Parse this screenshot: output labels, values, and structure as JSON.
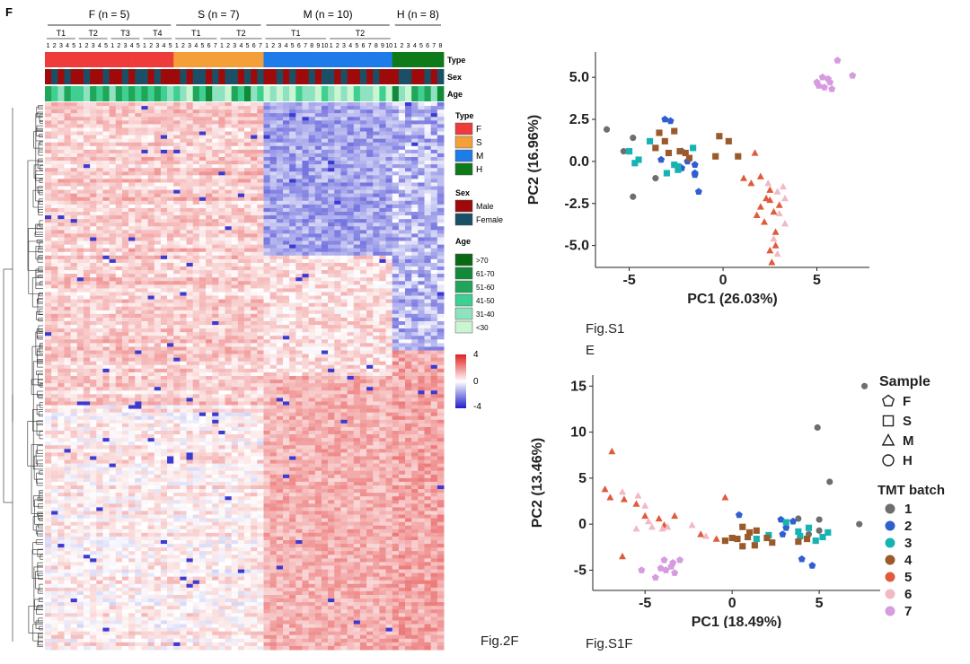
{
  "panel_letter": "F",
  "captions": {
    "fig2f": "Fig.2F",
    "figs1": "Fig.S1",
    "figs1_e": "E",
    "figs1f": "Fig.S1F"
  },
  "colors": {
    "F": "#ee3b3b",
    "S": "#f4a03a",
    "M": "#1e7be8",
    "H": "#0f7a1a",
    "male": "#9e0a0a",
    "female": "#1b4f66",
    "age": [
      "#0a6a14",
      "#118a3a",
      "#1fa65a",
      "#3fcf90",
      "#8fe2bf",
      "#c9f5d3"
    ],
    "heat_low": "#1f1fcc",
    "heat_mid": "#ffffff",
    "heat_high": "#e02020",
    "batch": [
      "#6e6e6e",
      "#2f5fd0",
      "#17b3b3",
      "#9b5a2c",
      "#e05a3c",
      "#f2b8c4",
      "#d79be0"
    ]
  },
  "chart_data": [
    {
      "type": "heatmap",
      "title": "",
      "groups": [
        {
          "label": "F (n = 5)",
          "subgroups": [
            {
              "label": "T1",
              "samples": [
                "1",
                "2",
                "3",
                "4",
                "5"
              ]
            },
            {
              "label": "T2",
              "samples": [
                "1",
                "2",
                "3",
                "4",
                "5"
              ]
            },
            {
              "label": "T3",
              "samples": [
                "1",
                "2",
                "3",
                "4",
                "5"
              ]
            },
            {
              "label": "T4",
              "samples": [
                "1",
                "2",
                "3",
                "4",
                "5"
              ]
            }
          ]
        },
        {
          "label": "S (n = 7)",
          "subgroups": [
            {
              "label": "T1",
              "samples": [
                "1",
                "2",
                "3",
                "4",
                "5",
                "6",
                "7"
              ]
            },
            {
              "label": "T2",
              "samples": [
                "1",
                "2",
                "3",
                "4",
                "5",
                "6",
                "7"
              ]
            }
          ]
        },
        {
          "label": "M (n = 10)",
          "subgroups": [
            {
              "label": "T1",
              "samples": [
                "1",
                "2",
                "3",
                "4",
                "5",
                "6",
                "7",
                "8",
                "9",
                "10"
              ]
            },
            {
              "label": "T2",
              "samples": [
                "1",
                "2",
                "3",
                "4",
                "5",
                "6",
                "7",
                "8",
                "9",
                "10"
              ]
            }
          ]
        },
        {
          "label": "H (n = 8)",
          "subgroups": [
            {
              "label": "",
              "samples": [
                "1",
                "2",
                "3",
                "4",
                "5",
                "6",
                "7",
                "8"
              ]
            }
          ]
        }
      ],
      "annotation_rows": [
        "Type",
        "Sex",
        "Age"
      ],
      "legend": {
        "type_title": "Type",
        "type_items": [
          "F",
          "S",
          "M",
          "H"
        ],
        "sex_title": "Sex",
        "sex_items": [
          "Male",
          "Female"
        ],
        "age_title": "Age",
        "age_items": [
          ">70",
          "61-70",
          "51-60",
          "41-50",
          "31-40",
          "<30"
        ],
        "scale_ticks": [
          "4",
          "0",
          "-4"
        ]
      },
      "value_range": [
        -4,
        4
      ]
    },
    {
      "type": "scatter",
      "xlabel": "PC1 (26.03%)",
      "ylabel": "PC2 (16.96%)",
      "xlim": [
        -6.8,
        7.8
      ],
      "ylim": [
        -6.3,
        6.5
      ],
      "xticks": [
        -5,
        0,
        5
      ],
      "yticks": [
        -5.0,
        -2.5,
        0.0,
        2.5,
        5.0
      ],
      "series": [
        {
          "shape": "circle",
          "batch": 1,
          "points": [
            [
              -6.2,
              1.9
            ],
            [
              -5.3,
              0.6
            ],
            [
              -4.8,
              1.4
            ],
            [
              -4.8,
              -2.1
            ],
            [
              -3.6,
              -1.0
            ]
          ]
        },
        {
          "shape": "pentagon",
          "batch": 2,
          "points": [
            [
              -3.1,
              2.5
            ],
            [
              -2.8,
              2.4
            ],
            [
              -1.9,
              0.0
            ],
            [
              -1.5,
              -0.2
            ],
            [
              -1.5,
              -0.7
            ],
            [
              -1.5,
              -0.8
            ],
            [
              -2.2,
              -0.4
            ],
            [
              -1.3,
              -1.8
            ],
            [
              -3.3,
              0.1
            ],
            [
              -2.2,
              0.6
            ]
          ]
        },
        {
          "shape": "square",
          "batch": 3,
          "points": [
            [
              -5.0,
              0.6
            ],
            [
              -4.5,
              0.1
            ],
            [
              -3.9,
              1.2
            ],
            [
              -4.7,
              -0.1
            ],
            [
              -3.0,
              -0.7
            ],
            [
              -2.6,
              -0.2
            ],
            [
              -2.4,
              -0.3
            ],
            [
              -1.6,
              0.8
            ],
            [
              -2.4,
              -0.5
            ]
          ]
        },
        {
          "shape": "square",
          "batch": 4,
          "points": [
            [
              -3.4,
              1.7
            ],
            [
              -2.9,
              0.5
            ],
            [
              -2.6,
              1.8
            ],
            [
              -2.3,
              0.6
            ],
            [
              -2.0,
              0.5
            ],
            [
              -1.8,
              0.2
            ],
            [
              -0.2,
              1.5
            ],
            [
              0.3,
              1.2
            ],
            [
              -0.4,
              0.3
            ],
            [
              0.8,
              0.3
            ],
            [
              -3.6,
              0.8
            ],
            [
              -3.1,
              1.2
            ]
          ]
        },
        {
          "shape": "triangle",
          "batch": 5,
          "points": [
            [
              1.7,
              0.5
            ],
            [
              2.0,
              -0.9
            ],
            [
              1.5,
              -1.3
            ],
            [
              1.1,
              -1.0
            ],
            [
              2.5,
              -1.7
            ],
            [
              2.3,
              -2.2
            ],
            [
              2.0,
              -2.7
            ],
            [
              1.8,
              -3.2
            ],
            [
              2.7,
              -3.0
            ],
            [
              2.8,
              -4.2
            ],
            [
              2.8,
              -5.0
            ],
            [
              2.5,
              -5.3
            ],
            [
              2.6,
              -6.0
            ],
            [
              2.5,
              -2.3
            ],
            [
              3.0,
              -2.6
            ],
            [
              2.2,
              -3.6
            ]
          ]
        },
        {
          "shape": "triangle",
          "batch": 6,
          "points": [
            [
              2.4,
              -1.3
            ],
            [
              2.9,
              -1.8
            ],
            [
              3.3,
              -2.2
            ],
            [
              3.0,
              -3.1
            ],
            [
              3.3,
              -3.7
            ],
            [
              2.7,
              -4.6
            ],
            [
              2.9,
              -5.5
            ],
            [
              3.2,
              -1.5
            ]
          ]
        },
        {
          "shape": "pentagon",
          "batch": 7,
          "points": [
            [
              5.0,
              4.7
            ],
            [
              5.3,
              5.0
            ],
            [
              5.6,
              4.9
            ],
            [
              5.8,
              4.3
            ],
            [
              5.4,
              4.4
            ],
            [
              6.1,
              6.0
            ],
            [
              6.9,
              5.1
            ],
            [
              5.1,
              4.5
            ],
            [
              5.7,
              4.7
            ]
          ]
        }
      ]
    },
    {
      "type": "scatter",
      "xlabel": "PC1 (18.49%)",
      "ylabel": "PC2 (13.46%)",
      "xlim": [
        -8.0,
        8.5
      ],
      "ylim": [
        -7.2,
        16.2
      ],
      "xticks": [
        -5,
        0,
        5
      ],
      "yticks": [
        -5,
        0,
        5,
        10,
        15
      ],
      "legend": {
        "sample_title": "Sample",
        "samples": [
          "F",
          "S",
          "M",
          "H"
        ],
        "batch_title": "TMT batch",
        "batches": [
          "1",
          "2",
          "3",
          "4",
          "5",
          "6",
          "7"
        ]
      },
      "series": [
        {
          "shape": "circle",
          "batch": 1,
          "points": [
            [
              7.6,
              15.0
            ],
            [
              4.9,
              10.5
            ],
            [
              5.6,
              4.6
            ],
            [
              7.3,
              0.0
            ],
            [
              5.0,
              0.5
            ],
            [
              3.8,
              0.6
            ],
            [
              5.0,
              -0.7
            ],
            [
              4.4,
              -1.1
            ]
          ]
        },
        {
          "shape": "pentagon",
          "batch": 2,
          "points": [
            [
              0.4,
              1.0
            ],
            [
              2.8,
              0.5
            ],
            [
              4.0,
              -3.8
            ],
            [
              4.6,
              -4.5
            ],
            [
              3.5,
              0.3
            ],
            [
              3.1,
              -0.4
            ],
            [
              2.9,
              -1.1
            ]
          ]
        },
        {
          "shape": "square",
          "batch": 3,
          "points": [
            [
              3.1,
              0.2
            ],
            [
              3.8,
              -0.8
            ],
            [
              3.9,
              -1.3
            ],
            [
              4.4,
              -0.4
            ],
            [
              5.2,
              -1.4
            ],
            [
              5.5,
              -0.9
            ],
            [
              2.1,
              -1.2
            ],
            [
              1.4,
              -1.6
            ],
            [
              4.8,
              -1.8
            ]
          ]
        },
        {
          "shape": "square",
          "batch": 4,
          "points": [
            [
              0.6,
              -0.3
            ],
            [
              1.0,
              -0.9
            ],
            [
              1.4,
              -0.7
            ],
            [
              2.0,
              -1.5
            ],
            [
              0.3,
              -1.6
            ],
            [
              -0.4,
              -1.8
            ],
            [
              0.0,
              -1.5
            ],
            [
              0.6,
              -2.4
            ],
            [
              1.3,
              -2.3
            ],
            [
              2.3,
              -2.0
            ],
            [
              3.8,
              -1.9
            ],
            [
              4.3,
              -1.6
            ],
            [
              0.9,
              -1.4
            ]
          ]
        },
        {
          "shape": "triangle",
          "batch": 5,
          "points": [
            [
              -6.9,
              7.9
            ],
            [
              -7.3,
              3.8
            ],
            [
              -7.0,
              2.9
            ],
            [
              -6.2,
              2.7
            ],
            [
              -5.5,
              2.2
            ],
            [
              -5.0,
              0.9
            ],
            [
              -4.2,
              0.6
            ],
            [
              -3.3,
              0.9
            ],
            [
              -3.9,
              -0.1
            ],
            [
              -6.3,
              -3.5
            ],
            [
              -0.4,
              2.9
            ],
            [
              -1.8,
              -1.1
            ],
            [
              -0.9,
              -1.6
            ]
          ]
        },
        {
          "shape": "triangle",
          "batch": 6,
          "points": [
            [
              -6.3,
              3.5
            ],
            [
              -5.4,
              3.1
            ],
            [
              -5.0,
              2.0
            ],
            [
              -4.6,
              -0.3
            ],
            [
              -4.8,
              0.3
            ],
            [
              -4.0,
              -0.5
            ],
            [
              -3.7,
              -0.3
            ],
            [
              -2.3,
              -0.1
            ],
            [
              -5.5,
              -0.5
            ],
            [
              -1.5,
              -1.3
            ]
          ]
        },
        {
          "shape": "pentagon",
          "batch": 7,
          "points": [
            [
              -5.2,
              -5.0
            ],
            [
              -3.9,
              -3.9
            ],
            [
              -3.4,
              -4.2
            ],
            [
              -3.5,
              -4.6
            ],
            [
              -3.0,
              -3.9
            ],
            [
              -4.1,
              -4.8
            ],
            [
              -4.4,
              -5.8
            ],
            [
              -3.8,
              -5.0
            ],
            [
              -3.3,
              -5.3
            ]
          ]
        }
      ]
    }
  ]
}
